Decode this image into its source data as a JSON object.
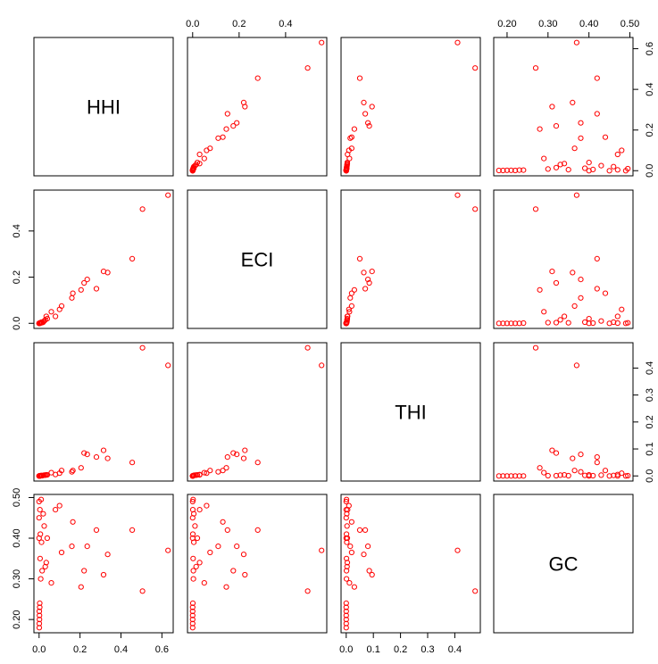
{
  "chart_data": {
    "type": "scatter",
    "title": "",
    "variables": [
      "HHI",
      "ECI",
      "THI",
      "GC"
    ],
    "point_color": "#ff0000",
    "grid": false,
    "axis_ticks": {
      "HHI": [
        0.0,
        0.2,
        0.4,
        0.6
      ],
      "ECI": [
        0.0,
        0.2,
        0.4
      ],
      "THI": [
        0.0,
        0.1,
        0.2,
        0.3,
        0.4
      ],
      "GC": [
        0.2,
        0.3,
        0.4,
        0.5
      ]
    },
    "tick_labels": {
      "HHI": [
        "0.0",
        "0.2",
        "0.4",
        "0.6"
      ],
      "ECI": [
        "0.0",
        "0.2",
        "0.4"
      ],
      "THI": [
        "0.0",
        "0.1",
        "0.2",
        "0.3",
        "0.4"
      ],
      "GC": [
        "0.20",
        "0.30",
        "0.40",
        "0.50"
      ]
    },
    "observations": [
      {
        "HHI": 0.63,
        "ECI": 0.555,
        "THI": 0.41,
        "GC": 0.37
      },
      {
        "HHI": 0.505,
        "ECI": 0.495,
        "THI": 0.475,
        "GC": 0.27
      },
      {
        "HHI": 0.455,
        "ECI": 0.28,
        "THI": 0.05,
        "GC": 0.42
      },
      {
        "HHI": 0.335,
        "ECI": 0.22,
        "THI": 0.065,
        "GC": 0.36
      },
      {
        "HHI": 0.315,
        "ECI": 0.225,
        "THI": 0.095,
        "GC": 0.31
      },
      {
        "HHI": 0.28,
        "ECI": 0.15,
        "THI": 0.07,
        "GC": 0.42
      },
      {
        "HHI": 0.235,
        "ECI": 0.19,
        "THI": 0.08,
        "GC": 0.38
      },
      {
        "HHI": 0.22,
        "ECI": 0.175,
        "THI": 0.085,
        "GC": 0.32
      },
      {
        "HHI": 0.205,
        "ECI": 0.145,
        "THI": 0.03,
        "GC": 0.28
      },
      {
        "HHI": 0.165,
        "ECI": 0.13,
        "THI": 0.02,
        "GC": 0.44
      },
      {
        "HHI": 0.16,
        "ECI": 0.11,
        "THI": 0.015,
        "GC": 0.38
      },
      {
        "HHI": 0.11,
        "ECI": 0.075,
        "THI": 0.02,
        "GC": 0.365
      },
      {
        "HHI": 0.1,
        "ECI": 0.06,
        "THI": 0.01,
        "GC": 0.48
      },
      {
        "HHI": 0.08,
        "ECI": 0.03,
        "THI": 0.005,
        "GC": 0.47
      },
      {
        "HHI": 0.06,
        "ECI": 0.05,
        "THI": 0.012,
        "GC": 0.29
      },
      {
        "HHI": 0.04,
        "ECI": 0.02,
        "THI": 0.004,
        "GC": 0.4
      },
      {
        "HHI": 0.035,
        "ECI": 0.03,
        "THI": 0.004,
        "GC": 0.34
      },
      {
        "HHI": 0.03,
        "ECI": 0.015,
        "THI": 0.003,
        "GC": 0.33
      },
      {
        "HHI": 0.025,
        "ECI": 0.01,
        "THI": 0.003,
        "GC": 0.43
      },
      {
        "HHI": 0.02,
        "ECI": 0.005,
        "THI": 0.002,
        "GC": 0.46
      },
      {
        "HHI": 0.015,
        "ECI": 0.003,
        "THI": 0.001,
        "GC": 0.32
      },
      {
        "HHI": 0.012,
        "ECI": 0.005,
        "THI": 0.002,
        "GC": 0.39
      },
      {
        "HHI": 0.01,
        "ECI": 0.002,
        "THI": 0.001,
        "GC": 0.495
      },
      {
        "HHI": 0.008,
        "ECI": 0.003,
        "THI": 0.001,
        "GC": 0.3
      },
      {
        "HHI": 0.006,
        "ECI": 0.001,
        "THI": 0.001,
        "GC": 0.41
      },
      {
        "HHI": 0.005,
        "ECI": 0.002,
        "THI": 0.001,
        "GC": 0.35
      },
      {
        "HHI": 0.004,
        "ECI": 0.001,
        "THI": 0.0,
        "GC": 0.47
      },
      {
        "HHI": 0.003,
        "ECI": 0.001,
        "THI": 0.0,
        "GC": 0.24
      },
      {
        "HHI": 0.003,
        "ECI": 0.0,
        "THI": 0.0,
        "GC": 0.23
      },
      {
        "HHI": 0.002,
        "ECI": 0.0,
        "THI": 0.0,
        "GC": 0.21
      },
      {
        "HHI": 0.002,
        "ECI": 0.0,
        "THI": 0.0,
        "GC": 0.2
      },
      {
        "HHI": 0.001,
        "ECI": 0.0,
        "THI": 0.0,
        "GC": 0.19
      },
      {
        "HHI": 0.001,
        "ECI": 0.0,
        "THI": 0.0,
        "GC": 0.18
      },
      {
        "HHI": 0.001,
        "ECI": 0.0,
        "THI": 0.0,
        "GC": 0.22
      },
      {
        "HHI": 0.0,
        "ECI": 0.0,
        "THI": 0.0,
        "GC": 0.45
      },
      {
        "HHI": 0.0,
        "ECI": 0.0,
        "THI": 0.0,
        "GC": 0.49
      },
      {
        "HHI": 0.0,
        "ECI": 0.0,
        "THI": 0.0,
        "GC": 0.4
      }
    ]
  }
}
